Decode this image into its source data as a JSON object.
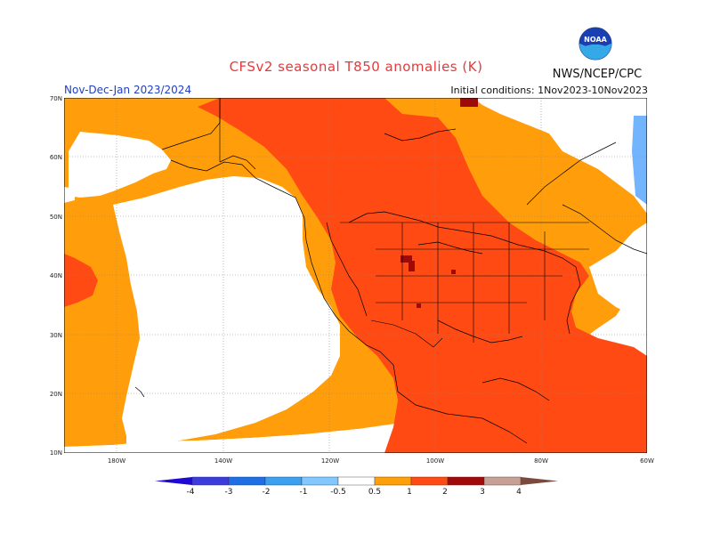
{
  "header": {
    "title": "CFSv2 seasonal T850 anomalies (K)",
    "agency": "NWS/NCEP/CPC",
    "period": "Nov-Dec-Jan 2023/2024",
    "initial_conditions": "Initial conditions: 1Nov2023-10Nov2023"
  },
  "logo": {
    "name": "noaa-logo",
    "text": "NOAA"
  },
  "map": {
    "lat_labels": [
      "70N",
      "60N",
      "50N",
      "40N",
      "30N",
      "20N",
      "10N"
    ],
    "lon_labels": [
      "180W",
      "140W",
      "120W",
      "100W",
      "80W",
      "60W"
    ],
    "colors": {
      "lt-0.5": "#ffffff",
      "0.5-1": "#ff9e0a",
      "1-2": "#ff4a14",
      "2-3": "#9e0a0a",
      "land_outline": "#000000",
      "grid": "#888888",
      "cold_blue": "#73b4ff"
    }
  },
  "colorbar": {
    "labels": [
      "-4",
      "-3",
      "-2",
      "-1",
      "-0.5",
      "0.5",
      "1",
      "2",
      "3",
      "4"
    ],
    "colors": [
      "#1e0ad2",
      "#3c3cdc",
      "#1e6ee6",
      "#3ca0f0",
      "#82c8ff",
      "#ffffff",
      "#ffa00a",
      "#ff4a14",
      "#a00a0a",
      "#c8a096",
      "#7a4a3c"
    ]
  }
}
